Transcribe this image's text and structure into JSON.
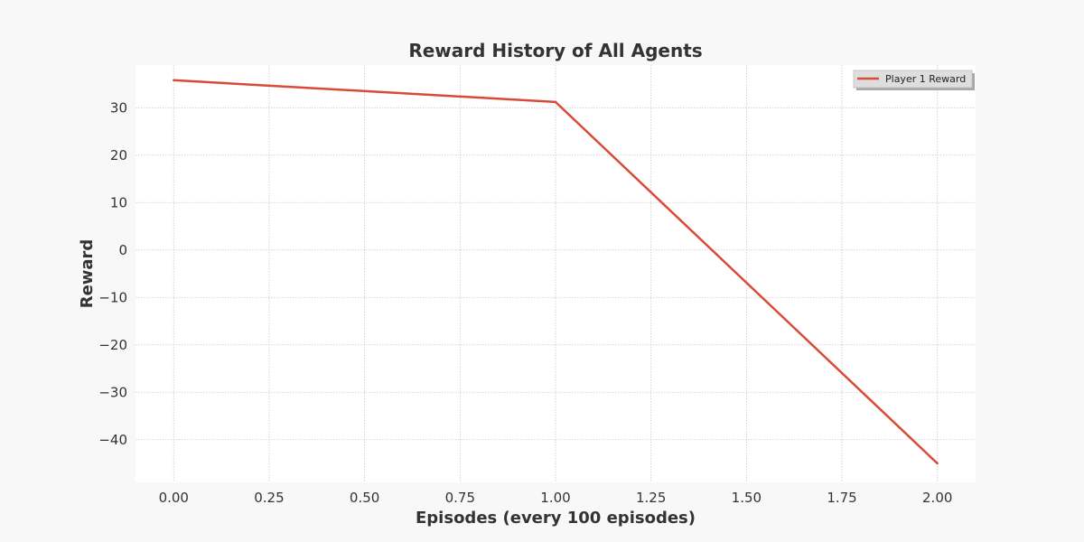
{
  "chart_data": {
    "type": "line",
    "title": "Reward History of All Agents",
    "xlabel": "Episodes (every 100 episodes)",
    "ylabel": "Reward",
    "xlim": [
      -0.1,
      2.1
    ],
    "ylim": [
      -49,
      39
    ],
    "x_ticks": [
      0.0,
      0.25,
      0.5,
      0.75,
      1.0,
      1.25,
      1.5,
      1.75,
      2.0
    ],
    "x_tick_labels": [
      "0.00",
      "0.25",
      "0.50",
      "0.75",
      "1.00",
      "1.25",
      "1.50",
      "1.75",
      "2.00"
    ],
    "y_ticks": [
      30,
      20,
      10,
      0,
      -10,
      -20,
      -30,
      -40
    ],
    "y_tick_labels": [
      "30",
      "20",
      "10",
      "0",
      "−10",
      "−20",
      "−30",
      "−40"
    ],
    "grid": true,
    "legend_position": "top-right",
    "series": [
      {
        "name": "Player 1 Reward",
        "color": "#d94a38",
        "x": [
          0,
          1,
          2
        ],
        "y": [
          35.8,
          31.2,
          -45.0
        ]
      }
    ]
  }
}
